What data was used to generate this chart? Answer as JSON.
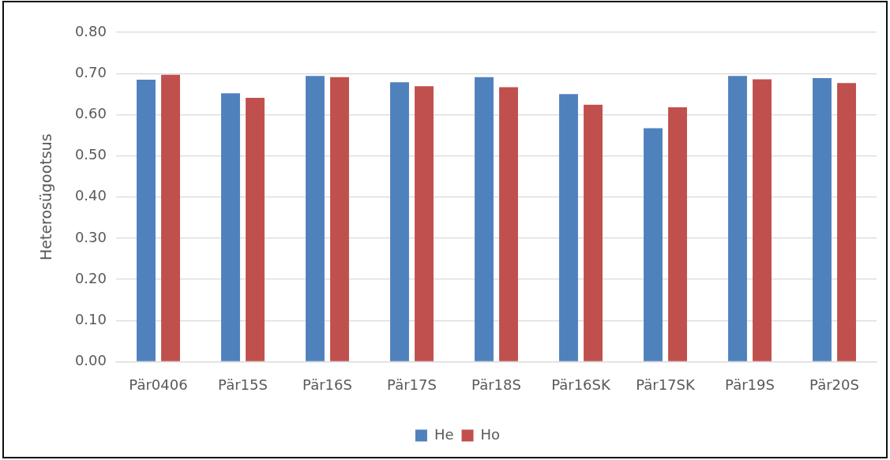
{
  "chart_data": {
    "type": "bar",
    "ylabel": "Heterosügootsus",
    "categories": [
      "Pär0406",
      "Pär15S",
      "Pär16S",
      "Pär17S",
      "Pär18S",
      "Pär16SK",
      "Pär17SK",
      "Pär19S",
      "Pär20S"
    ],
    "series": [
      {
        "name": "He",
        "color": "#4f81bd",
        "values": [
          0.685,
          0.652,
          0.694,
          0.679,
          0.691,
          0.65,
          0.567,
          0.694,
          0.689
        ]
      },
      {
        "name": "Ho",
        "color": "#c0504d",
        "values": [
          0.697,
          0.641,
          0.691,
          0.669,
          0.667,
          0.624,
          0.618,
          0.686,
          0.677
        ]
      }
    ],
    "ylim": [
      0,
      0.8
    ],
    "yticks": [
      {
        "value": 0,
        "label": "0.00"
      },
      {
        "value": 0.1,
        "label": "0.10"
      },
      {
        "value": 0.2,
        "label": "0.20"
      },
      {
        "value": 0.3,
        "label": "0.30"
      },
      {
        "value": 0.4,
        "label": "0.40"
      },
      {
        "value": 0.5,
        "label": "0.50"
      },
      {
        "value": 0.6,
        "label": "0.60"
      },
      {
        "value": 0.7,
        "label": "0.70"
      },
      {
        "value": 0.8,
        "label": "0.80"
      }
    ],
    "grid": "y",
    "legend": "bottom"
  }
}
